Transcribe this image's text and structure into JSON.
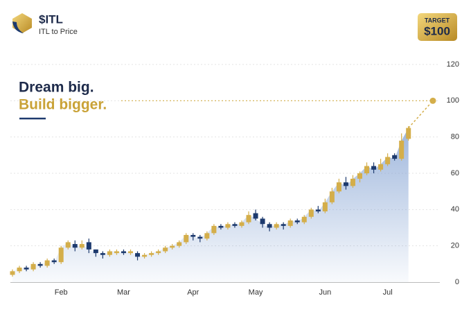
{
  "header": {
    "ticker": "$ITL",
    "subtitle": "ITL to Price"
  },
  "tagline": {
    "line1": "Dream big.",
    "line2": "Build bigger."
  },
  "chart_data": {
    "type": "candlestick",
    "categories": [
      null,
      null,
      null,
      null,
      null,
      null,
      null,
      "Feb",
      null,
      null,
      null,
      null,
      null,
      null,
      null,
      null,
      "Mar",
      null,
      null,
      null,
      null,
      null,
      null,
      null,
      null,
      null,
      "Apr",
      null,
      null,
      null,
      null,
      null,
      null,
      null,
      null,
      "May",
      null,
      null,
      null,
      null,
      null,
      null,
      null,
      null,
      null,
      "Jun",
      null,
      null,
      null,
      null,
      null,
      null,
      null,
      null,
      "Jul",
      null,
      null,
      null
    ],
    "open": [
      4,
      6,
      8,
      7,
      10,
      9,
      12,
      11,
      19,
      21,
      19,
      22,
      18,
      16,
      15,
      16,
      17,
      16,
      16,
      14,
      15,
      16,
      17,
      19,
      20,
      22,
      26,
      25,
      24,
      27,
      31,
      30,
      32,
      31,
      33,
      38,
      35,
      32,
      30,
      32,
      31,
      34,
      33,
      36,
      40,
      39,
      44,
      50,
      55,
      53,
      57,
      60,
      64,
      62,
      65,
      70,
      68,
      79
    ],
    "high": [
      7,
      9,
      9,
      11,
      11,
      13,
      13,
      20,
      23,
      23,
      23,
      24,
      18,
      17,
      18,
      18,
      18,
      18,
      17,
      16,
      17,
      18,
      20,
      21,
      23,
      27,
      27,
      26,
      28,
      32,
      32,
      33,
      33,
      34,
      39,
      40,
      36,
      33,
      33,
      33,
      35,
      35,
      37,
      41,
      42,
      46,
      52,
      57,
      58,
      59,
      61,
      66,
      66,
      68,
      71,
      71,
      82,
      86
    ],
    "low": [
      3,
      5,
      6,
      6,
      8,
      8,
      10,
      10,
      18,
      17,
      18,
      16,
      14,
      13,
      14,
      15,
      15,
      15,
      12,
      13,
      14,
      15,
      16,
      18,
      19,
      21,
      23,
      22,
      23,
      26,
      29,
      29,
      30,
      30,
      32,
      34,
      30,
      28,
      29,
      29,
      30,
      32,
      32,
      35,
      38,
      38,
      43,
      49,
      51,
      52,
      55,
      59,
      60,
      61,
      64,
      67,
      67,
      78
    ],
    "close": [
      6,
      8,
      7,
      10,
      9,
      12,
      11,
      19,
      22,
      19,
      21,
      18,
      16,
      15,
      17,
      17,
      16,
      17,
      14,
      15,
      16,
      17,
      19,
      20,
      22,
      26,
      25,
      24,
      27,
      31,
      30,
      32,
      31,
      33,
      37,
      35,
      32,
      30,
      32,
      31,
      34,
      33,
      36,
      40,
      39,
      44,
      50,
      55,
      53,
      57,
      60,
      64,
      62,
      65,
      69,
      68,
      78,
      85
    ],
    "up_color": "#d4ae4a",
    "down_color": "#1d3a6e",
    "area_color": "#7f9fd1",
    "ylim": [
      0,
      120
    ],
    "yticks": [
      0,
      20,
      40,
      60,
      80,
      100,
      120
    ],
    "grid": true,
    "target": {
      "label": "TARGET",
      "value": 100,
      "value_label": "$100"
    }
  }
}
